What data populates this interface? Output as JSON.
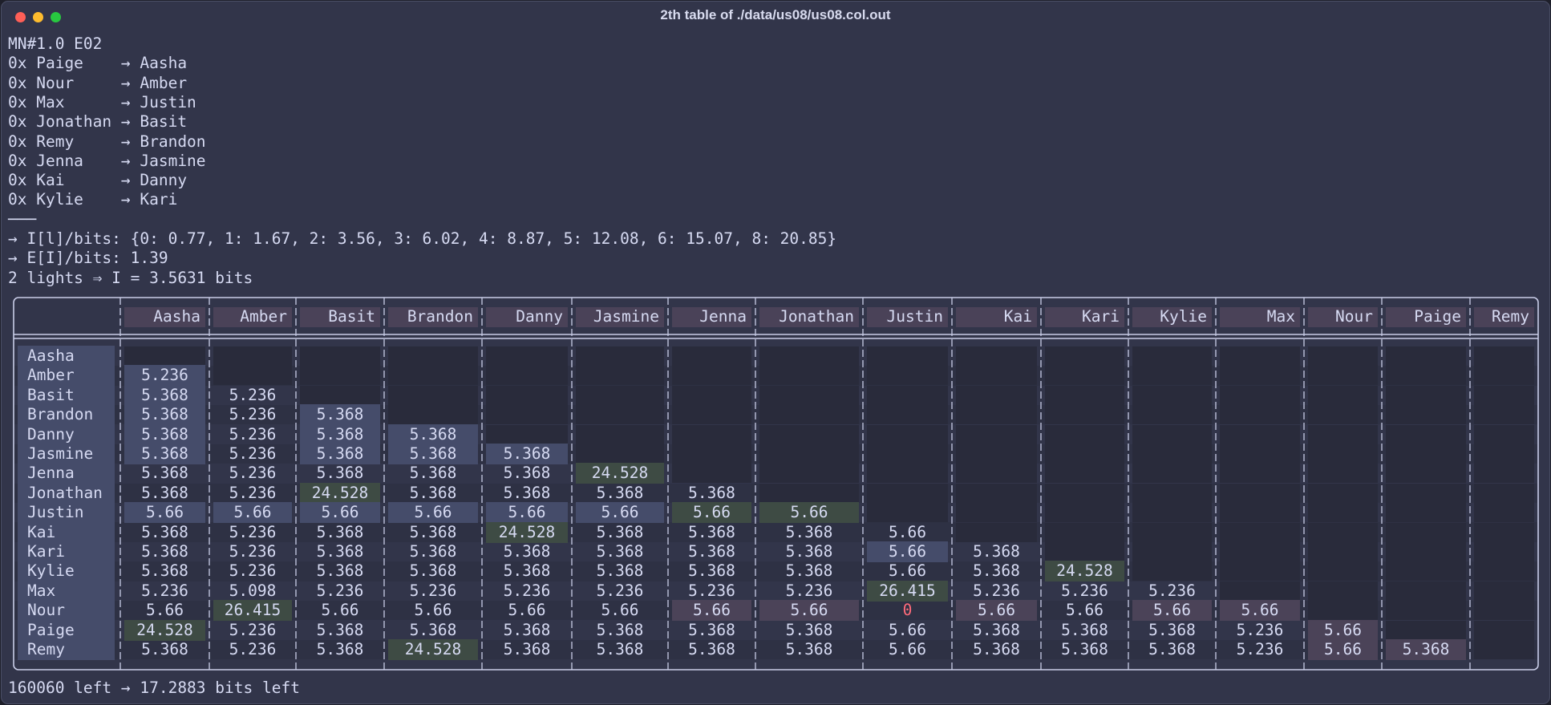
{
  "window": {
    "title": "2th table of ./data/us08/us08.col.out"
  },
  "lines": [
    "MN#1.0 E02",
    "0x Paige    → Aasha",
    "0x Nour     → Amber",
    "0x Max      → Justin",
    "0x Jonathan → Basit",
    "0x Remy     → Brandon",
    "0x Jenna    → Jasmine",
    "0x Kai      → Danny",
    "0x Kylie    → Kari",
    "───",
    "→ I[l]/bits: {0: 0.77, 1: 1.67, 2: 3.56, 3: 6.02, 4: 8.87, 5: 12.08, 6: 15.07, 8: 20.85}",
    "→ E[I]/bits: 1.39",
    "2 lights ⇒ I = 3.5631 bits"
  ],
  "table": {
    "columns": [
      "Aasha",
      "Amber",
      "Basit",
      "Brandon",
      "Danny",
      "Jasmine",
      "Jenna",
      "Jonathan",
      "Justin",
      "Kai",
      "Kari",
      "Kylie",
      "Max",
      "Nour",
      "Paige",
      "Remy"
    ],
    "rows": [
      {
        "label": "Aasha",
        "values": [],
        "styles": []
      },
      {
        "label": "Amber",
        "values": [
          5.236
        ],
        "styles": [
          "#454c6a"
        ]
      },
      {
        "label": "Basit",
        "values": [
          5.368,
          5.236
        ],
        "styles": [
          "#454c6a",
          null
        ]
      },
      {
        "label": "Brandon",
        "values": [
          5.368,
          5.236,
          5.368
        ],
        "styles": [
          "#454c6a",
          null,
          "#454c6a"
        ]
      },
      {
        "label": "Danny",
        "values": [
          5.368,
          5.236,
          5.368,
          5.368
        ],
        "styles": [
          "#454c6a",
          null,
          "#454c6a",
          "#454c6a"
        ]
      },
      {
        "label": "Jasmine",
        "values": [
          5.368,
          5.236,
          5.368,
          5.368,
          5.368
        ],
        "styles": [
          "#454c6a",
          null,
          "#454c6a",
          "#454c6a",
          "#454c6a"
        ]
      },
      {
        "label": "Jenna",
        "values": [
          5.368,
          5.236,
          5.368,
          5.368,
          5.368,
          24.528
        ],
        "styles": [
          null,
          null,
          null,
          null,
          null,
          "#3e4b44"
        ]
      },
      {
        "label": "Jonathan",
        "values": [
          5.368,
          5.236,
          24.528,
          5.368,
          5.368,
          5.368,
          5.368
        ],
        "styles": [
          null,
          null,
          "#3e4b44",
          null,
          null,
          null,
          null
        ]
      },
      {
        "label": "Justin",
        "values": [
          5.66,
          5.66,
          5.66,
          5.66,
          5.66,
          5.66,
          5.66,
          5.66
        ],
        "styles": [
          "#454c6a",
          "#454c6a",
          "#454c6a",
          "#454c6a",
          "#454c6a",
          "#454c6a",
          "#3e4b44",
          "#3e4b44"
        ]
      },
      {
        "label": "Kai",
        "values": [
          5.368,
          5.236,
          5.368,
          5.368,
          24.528,
          5.368,
          5.368,
          5.368,
          5.66
        ],
        "styles": [
          null,
          null,
          null,
          null,
          "#3e4b44",
          null,
          null,
          null,
          null
        ]
      },
      {
        "label": "Kari",
        "values": [
          5.368,
          5.236,
          5.368,
          5.368,
          5.368,
          5.368,
          5.368,
          5.368,
          5.66,
          5.368
        ],
        "styles": [
          null,
          null,
          null,
          null,
          null,
          null,
          null,
          null,
          "#454c6a",
          null
        ]
      },
      {
        "label": "Kylie",
        "values": [
          5.368,
          5.236,
          5.368,
          5.368,
          5.368,
          5.368,
          5.368,
          5.368,
          5.66,
          5.368,
          24.528
        ],
        "styles": [
          null,
          null,
          null,
          null,
          null,
          null,
          null,
          null,
          null,
          null,
          "#3e4b44"
        ]
      },
      {
        "label": "Max",
        "values": [
          5.236,
          5.098,
          5.236,
          5.236,
          5.236,
          5.236,
          5.236,
          5.236,
          26.415,
          5.236,
          5.236,
          5.236
        ],
        "styles": [
          null,
          null,
          null,
          null,
          null,
          null,
          null,
          null,
          "#3e4b44",
          null,
          null,
          null
        ]
      },
      {
        "label": "Nour",
        "values": [
          5.66,
          26.415,
          5.66,
          5.66,
          5.66,
          5.66,
          5.66,
          5.66,
          0,
          5.66,
          5.66,
          5.66,
          5.66
        ],
        "styles": [
          null,
          "#3e4b44",
          null,
          null,
          null,
          null,
          "#4b4358",
          "#4b4358",
          {
            "color": "#ff6b7a"
          },
          "#4b4358",
          null,
          "#4b4358",
          "#4b4358"
        ]
      },
      {
        "label": "Paige",
        "values": [
          24.528,
          5.236,
          5.368,
          5.368,
          5.368,
          5.368,
          5.368,
          5.368,
          5.66,
          5.368,
          5.368,
          5.368,
          5.236,
          5.66
        ],
        "styles": [
          "#3e4b44",
          null,
          null,
          null,
          null,
          null,
          null,
          null,
          null,
          null,
          null,
          null,
          null,
          "#4b4358"
        ]
      },
      {
        "label": "Remy",
        "values": [
          5.368,
          5.236,
          5.368,
          24.528,
          5.368,
          5.368,
          5.368,
          5.368,
          5.66,
          5.368,
          5.368,
          5.368,
          5.236,
          5.66,
          5.368
        ],
        "styles": [
          null,
          null,
          null,
          "#3e4b44",
          null,
          null,
          null,
          null,
          null,
          null,
          null,
          null,
          null,
          "#4b4358",
          "#4b4358"
        ]
      }
    ]
  },
  "footer": "160060 left → 17.2883 bits left"
}
